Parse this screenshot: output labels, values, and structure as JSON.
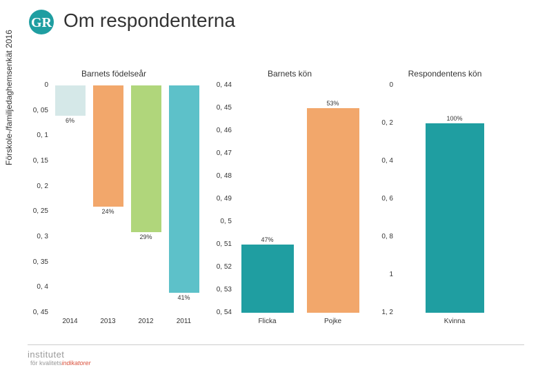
{
  "sidebar_text": "Förskole-/familjedaghemsenkät 2016",
  "page_title": "Om respondenterna",
  "footer": {
    "line1": "institutet",
    "line2a": "för kvalitets",
    "line2b": "indikatorer"
  },
  "chart1": {
    "title": "Barnets födelseår",
    "type": "bar",
    "orientation": "inverted_y",
    "y_ticks": [
      "0",
      "0, 05",
      "0, 1",
      "0, 15",
      "0, 2",
      "0, 25",
      "0, 3",
      "0, 35",
      "0, 4",
      "0, 45"
    ],
    "y_max": 0.45,
    "categories": [
      "2014",
      "2013",
      "2012",
      "2011"
    ],
    "values": [
      0.06,
      0.24,
      0.29,
      0.41
    ],
    "value_labels": [
      "6%",
      "24%",
      "29%",
      "41%"
    ],
    "bar_colors": [
      "#d5e8e8",
      "#f2a76b",
      "#b0d67b",
      "#5dc1c9"
    ],
    "plot_bg": "#ffffff",
    "label_fontsize": 9,
    "axis_fontsize": 10
  },
  "chart2": {
    "title": "Barnets kön",
    "type": "bar",
    "y_ticks": [
      "0, 44",
      "0, 45",
      "0, 46",
      "0, 47",
      "0, 48",
      "0, 49",
      "0, 5",
      "0, 51",
      "0, 52",
      "0, 53",
      "0, 54"
    ],
    "y_min": 0.44,
    "y_max": 0.54,
    "categories": [
      "Flicka",
      "Pojke"
    ],
    "values": [
      0.47,
      0.53
    ],
    "value_labels": [
      "47%",
      "53%"
    ],
    "bar_colors": [
      "#1f9ea1",
      "#f2a76b"
    ],
    "plot_bg": "#ffffff",
    "label_fontsize": 9,
    "axis_fontsize": 10
  },
  "chart3": {
    "title": "Respondentens kön",
    "type": "bar",
    "y_ticks": [
      "0",
      "0, 2",
      "0, 4",
      "0, 6",
      "0, 8",
      "1",
      "1, 2"
    ],
    "y_min": 0,
    "y_max": 1.2,
    "categories": [
      "Kvinna"
    ],
    "values": [
      1.0
    ],
    "value_labels": [
      "100%"
    ],
    "bar_colors": [
      "#1f9ea1"
    ],
    "plot_bg": "#ffffff",
    "label_fontsize": 9,
    "axis_fontsize": 10
  }
}
